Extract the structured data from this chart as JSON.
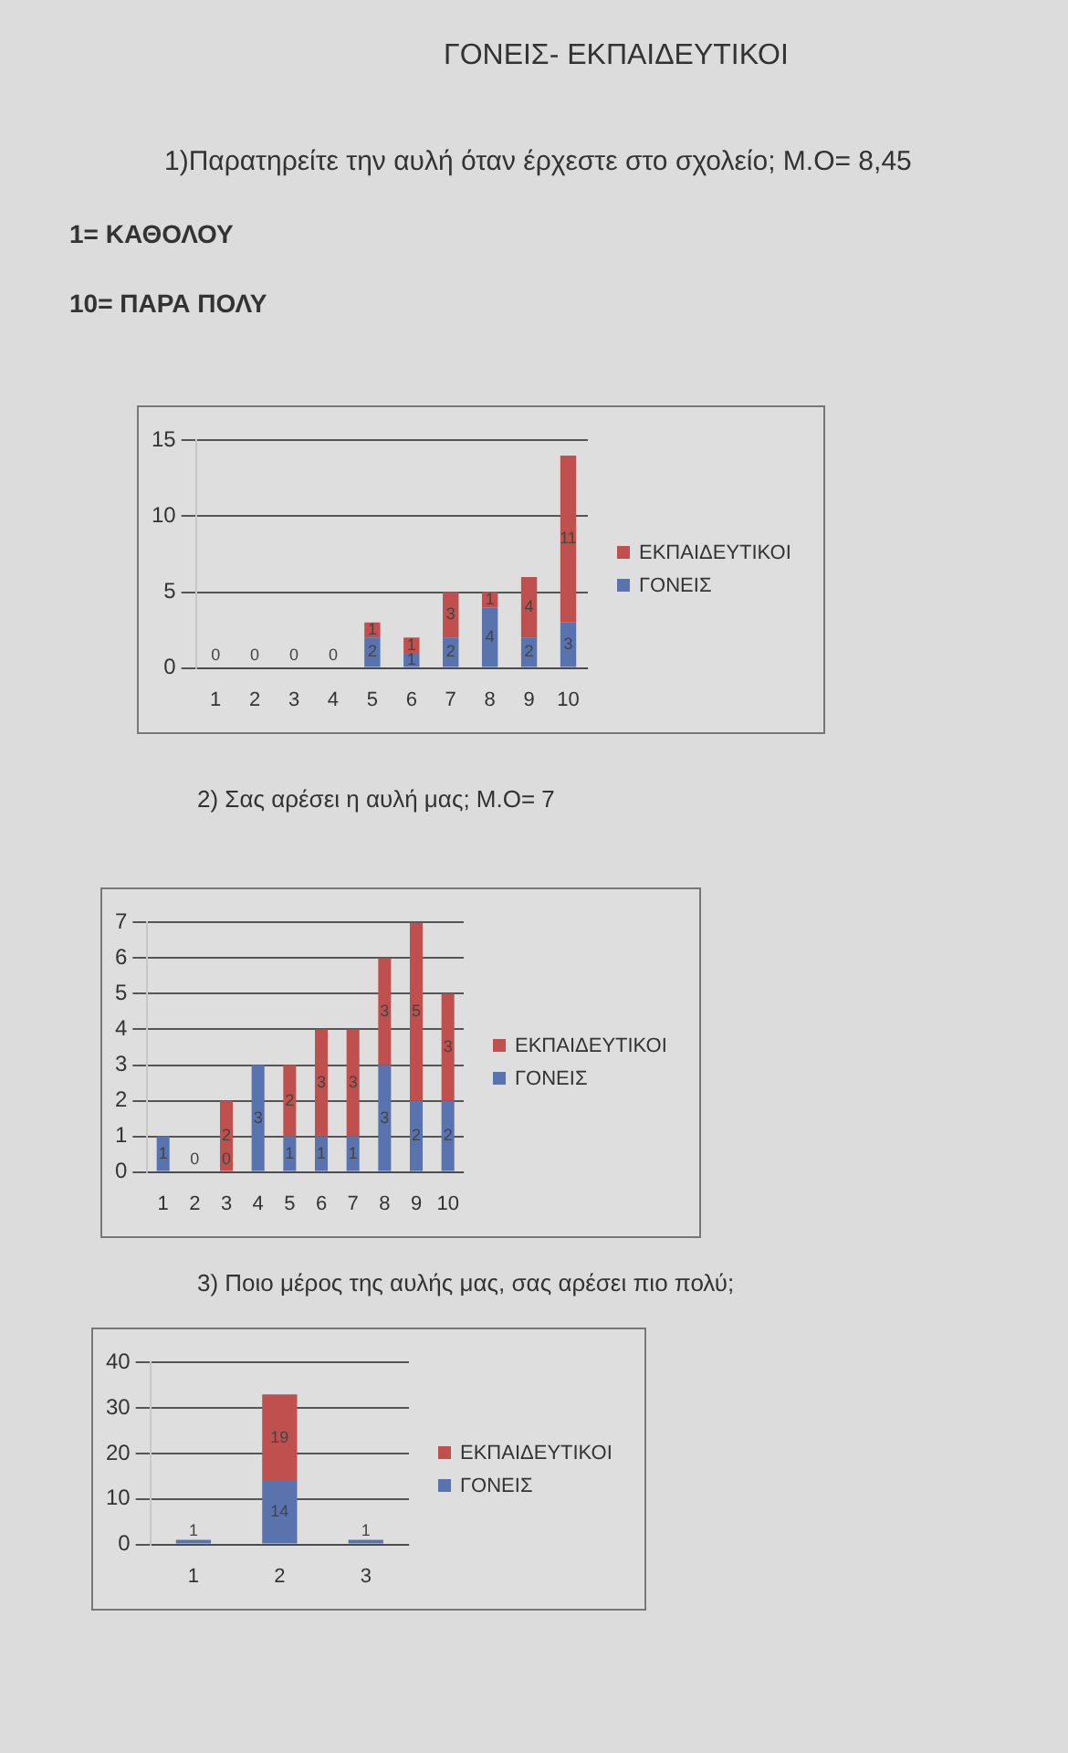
{
  "chart_data": [
    {
      "type": "bar",
      "title": "ΓΟΝΕΙΣ- ΕΚΠΑΙΔΕΥΤΙΚΟΙ",
      "subtitle": "1)Παρατηρείτε την αυλή όταν έρχεστε στο σχολείο; Μ.Ο= 8,45",
      "annotations": [
        "1= ΚΑΘΟΛΟΥ",
        "10= ΠΑΡΑ ΠΟΛΥ"
      ],
      "categories": [
        "1",
        "2",
        "3",
        "4",
        "5",
        "6",
        "7",
        "8",
        "9",
        "10"
      ],
      "stacked": true,
      "ylim": [
        0,
        15
      ],
      "yticks": [
        0,
        5,
        10,
        15
      ],
      "grid": "y",
      "legend": "right",
      "series": [
        {
          "name": "ΓΟΝΕΙΣ",
          "color": "#5873ad",
          "values": [
            0,
            0,
            0,
            0,
            2,
            1,
            2,
            4,
            2,
            3
          ],
          "value_labels": [
            "0",
            "0",
            "0",
            "0",
            "2",
            "1",
            "2",
            "4",
            "2",
            "3"
          ]
        },
        {
          "name": "ΕΚΠΑΙΔΕΥΤΙΚΟΙ",
          "color": "#c0504d",
          "values": [
            0,
            0,
            0,
            0,
            1,
            1,
            3,
            1,
            4,
            11
          ],
          "value_labels": [
            null,
            null,
            null,
            null,
            "1",
            "1",
            "3",
            "1",
            "4",
            "11"
          ]
        }
      ]
    },
    {
      "type": "bar",
      "subtitle": "2)  Σας αρέσει η αυλή μας; Μ.Ο= 7",
      "categories": [
        "1",
        "2",
        "3",
        "4",
        "5",
        "6",
        "7",
        "8",
        "9",
        "10"
      ],
      "stacked": true,
      "ylim": [
        0,
        7
      ],
      "yticks": [
        0,
        1,
        2,
        3,
        4,
        5,
        6,
        7
      ],
      "grid": "y",
      "legend": "right",
      "series": [
        {
          "name": "ΓΟΝΕΙΣ",
          "color": "#5873ad",
          "values": [
            1,
            0,
            0,
            3,
            1,
            1,
            1,
            3,
            2,
            2
          ],
          "value_labels": [
            "1",
            "0",
            "0",
            "3",
            "1",
            "1",
            "1",
            "3",
            "2",
            "2"
          ]
        },
        {
          "name": "ΕΚΠΑΙΔΕΥΤΙΚΟΙ",
          "color": "#c0504d",
          "values": [
            0,
            0,
            2,
            0,
            2,
            3,
            3,
            3,
            5,
            3
          ],
          "value_labels": [
            null,
            null,
            "2",
            null,
            "2",
            "3",
            "3",
            "3",
            "5",
            "3"
          ]
        }
      ]
    },
    {
      "type": "bar",
      "subtitle": "3)  Ποιο μέρος της αυλής μας,  σας αρέσει πιο πολύ;",
      "categories": [
        "1",
        "2",
        "3"
      ],
      "stacked": true,
      "ylim": [
        0,
        40
      ],
      "yticks": [
        0,
        10,
        20,
        30,
        40
      ],
      "grid": "y",
      "legend": "right",
      "series": [
        {
          "name": "ΓΟΝΕΙΣ",
          "color": "#5873ad",
          "values": [
            1,
            14,
            1
          ],
          "value_labels": [
            "1",
            "14",
            "1"
          ]
        },
        {
          "name": "ΕΚΠΑΙΔΕΥΤΙΚΟΙ",
          "color": "#c0504d",
          "values": [
            0,
            19,
            0
          ],
          "value_labels": [
            null,
            "19",
            null
          ]
        }
      ]
    }
  ]
}
